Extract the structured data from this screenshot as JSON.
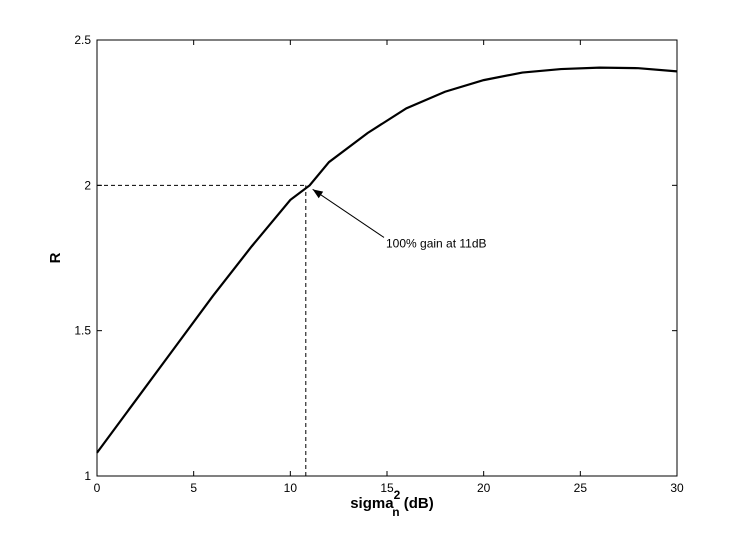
{
  "chart_data": {
    "type": "line",
    "title": "",
    "xlabel": {
      "main": "sigma",
      "sub": "n",
      "sup": "2",
      "unit": " (dB)"
    },
    "ylabel": "R",
    "xlim": [
      0,
      30
    ],
    "ylim": [
      1,
      2.5
    ],
    "xticks": [
      0,
      5,
      10,
      15,
      20,
      25,
      30
    ],
    "xtick_labels": [
      "0",
      "5",
      "10",
      "15",
      "20",
      "25",
      "30"
    ],
    "yticks": [
      1,
      1.5,
      2,
      2.5
    ],
    "ytick_labels": [
      "1",
      "1.5",
      "2",
      "2.5"
    ],
    "grid": false,
    "series": [
      {
        "color": "#000000",
        "x": [
          0,
          2,
          4,
          6,
          8,
          10,
          11,
          12,
          14,
          16,
          18,
          20,
          22,
          24,
          26,
          28,
          30
        ],
        "y": [
          1.08,
          1.26,
          1.44,
          1.62,
          1.79,
          1.95,
          2.0,
          2.08,
          2.18,
          2.265,
          2.322,
          2.362,
          2.388,
          2.4,
          2.405,
          2.403,
          2.392
        ]
      }
    ],
    "reference_lines": [
      {
        "style": "dashed",
        "from": [
          0,
          2
        ],
        "to": [
          10.8,
          2
        ]
      },
      {
        "style": "dashed",
        "from": [
          10.8,
          1
        ],
        "to": [
          10.8,
          2
        ]
      }
    ],
    "annotations": [
      {
        "text": "100% gain at 11dB",
        "text_at": [
          15,
          1.8
        ],
        "arrow_to": [
          11,
          2
        ]
      }
    ]
  }
}
